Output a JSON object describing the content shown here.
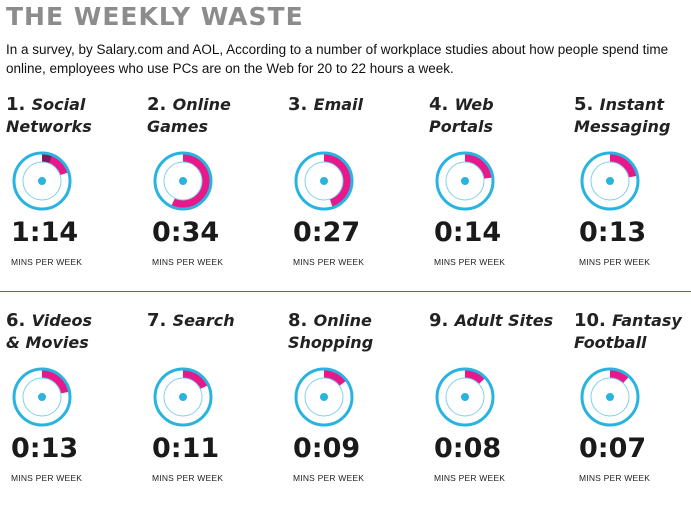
{
  "title": "THE WEEKLY WASTE",
  "intro": "In a survey, by Salary.com and AOL, According to a number of workplace studies about how people spend time online, employees who use PCs are on the Web for 20 to 22 hours a week.",
  "colors": {
    "accent": "#e8188a",
    "ring": "#29b4e0",
    "title": "#8c8c8c"
  },
  "chart_data": {
    "type": "pie",
    "title": "THE WEEKLY WASTE",
    "unit_label": "MINS PER WEEK",
    "items": [
      {
        "rank": "1.",
        "label_lines": [
          "Social",
          "Networks"
        ],
        "value": "1:14",
        "unit": "MINS PER WEEK",
        "fraction": 0.2,
        "dark_fraction": 0.06
      },
      {
        "rank": "2.",
        "label_lines": [
          "Online",
          "Games"
        ],
        "value": "0:34",
        "unit": "MINS PER WEEK",
        "fraction": 0.57,
        "dark_fraction": 0
      },
      {
        "rank": "3.",
        "label_lines": [
          "Email"
        ],
        "value": "0:27",
        "unit": "MINS PER WEEK",
        "fraction": 0.45,
        "dark_fraction": 0
      },
      {
        "rank": "4.",
        "label_lines": [
          "Web",
          "Portals"
        ],
        "value": "0:14",
        "unit": "MINS PER WEEK",
        "fraction": 0.23,
        "dark_fraction": 0
      },
      {
        "rank": "5.",
        "label_lines": [
          "Instant",
          "Messaging"
        ],
        "value": "0:13",
        "unit": "MINS PER WEEK",
        "fraction": 0.22,
        "dark_fraction": 0
      },
      {
        "rank": "6.",
        "label_lines": [
          "Videos",
          "& Movies"
        ],
        "value": "0:13",
        "unit": "MINS PER WEEK",
        "fraction": 0.22,
        "dark_fraction": 0
      },
      {
        "rank": "7.",
        "label_lines": [
          "Search"
        ],
        "value": "0:11",
        "unit": "MINS PER WEEK",
        "fraction": 0.18,
        "dark_fraction": 0
      },
      {
        "rank": "8.",
        "label_lines": [
          "Online",
          "Shopping"
        ],
        "value": "0:09",
        "unit": "MINS PER WEEK",
        "fraction": 0.15,
        "dark_fraction": 0
      },
      {
        "rank": "9.",
        "label_lines": [
          "Adult Sites"
        ],
        "value": "0:08",
        "unit": "MINS PER WEEK",
        "fraction": 0.13,
        "dark_fraction": 0
      },
      {
        "rank": "10.",
        "label_lines": [
          "Fantasy",
          "Football"
        ],
        "value": "0:07",
        "unit": "MINS PER WEEK",
        "fraction": 0.12,
        "dark_fraction": 0
      }
    ]
  }
}
